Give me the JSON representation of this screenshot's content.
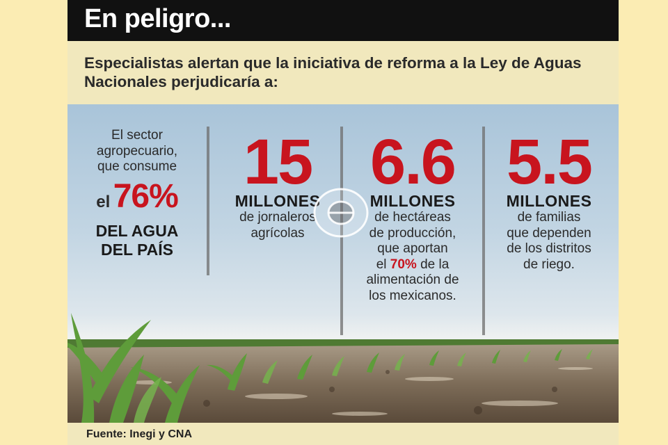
{
  "header": {
    "title": "En peligro..."
  },
  "intro": {
    "text": "Especialistas alertan que la iniciativa de reforma a la Ley de Aguas Nacionales perjudicaría a:"
  },
  "columns": [
    {
      "line1": "El sector",
      "line2": "agropecuario,",
      "line3": "que consume",
      "prefix": "el",
      "value": "76%",
      "bold1": "DEL AGUA",
      "bold2": "DEL PAÍS"
    },
    {
      "value": "15",
      "unit": "MILLONES",
      "lines": [
        "de jornaleros",
        "agrícolas"
      ]
    },
    {
      "value": "6.6",
      "unit": "MILLONES",
      "lines": [
        "de hectáreas",
        "de producción,",
        "que aportan"
      ],
      "line4_prefix": "el",
      "line4_value": "70%",
      "line4_suffix": "de la",
      "lines_after": [
        "alimentación de",
        "los mexicanos."
      ]
    },
    {
      "value": "5.5",
      "unit": "MILLONES",
      "lines": [
        "de familias",
        "que dependen",
        "de los distritos",
        "de riego."
      ]
    }
  ],
  "footer": {
    "source": "Fuente: Inegi y CNA"
  },
  "colors": {
    "accent": "#c8141e",
    "title_bar": "#111111",
    "panel": "#f1e8bd",
    "page": "#fbecb3"
  },
  "icons": {
    "overlay": "zoom-reticle-icon",
    "photo": "corn-field-image"
  }
}
